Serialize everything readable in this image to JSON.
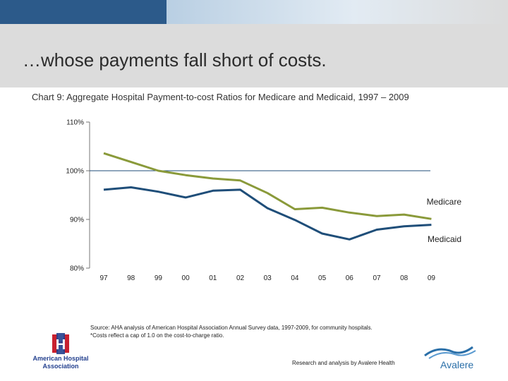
{
  "slide_title": "…whose payments fall short of costs.",
  "chart_title": "Chart 9: Aggregate Hospital Payment-to-cost Ratios for Medicare and Medicaid, 1997 – 2009",
  "chart_data": {
    "type": "line",
    "title": "Chart 9: Aggregate Hospital Payment-to-cost Ratios for Medicare and Medicaid, 1997 – 2009",
    "categories": [
      "97",
      "98",
      "99",
      "00",
      "01",
      "02",
      "03",
      "04",
      "05",
      "06",
      "07",
      "08",
      "09"
    ],
    "y_ticks": [
      "110%",
      "100%",
      "90%",
      "80%"
    ],
    "y_tick_values": [
      110,
      100,
      90,
      80
    ],
    "ylim": [
      80,
      110
    ],
    "reference_line": 100,
    "series": [
      {
        "name": "Medicare",
        "color": "#8a9a3a",
        "values": [
          103.6,
          101.8,
          100.0,
          99.1,
          98.4,
          98.0,
          95.4,
          92.1,
          92.4,
          91.4,
          90.7,
          91.0,
          90.1
        ]
      },
      {
        "name": "Medicaid",
        "color": "#1f4e79",
        "values": [
          96.1,
          96.6,
          95.7,
          94.5,
          95.9,
          96.1,
          92.3,
          89.9,
          87.1,
          85.9,
          87.9,
          88.6,
          88.9
        ]
      }
    ],
    "reference_line_color": "#1f4e79",
    "grid": false
  },
  "source_note": "Source: AHA analysis of American Hospital Association Annual Survey data, 1997-2009, for community hospitals.",
  "source_note_2": "*Costs reflect a cap of 1.0 on the cost-to-charge ratio.",
  "credit": "Research and analysis by Avalere Health",
  "logo_left": {
    "line1": "American Hospital",
    "line2": "Association",
    "letter": "H"
  },
  "logo_right": {
    "text": "Avalere"
  }
}
